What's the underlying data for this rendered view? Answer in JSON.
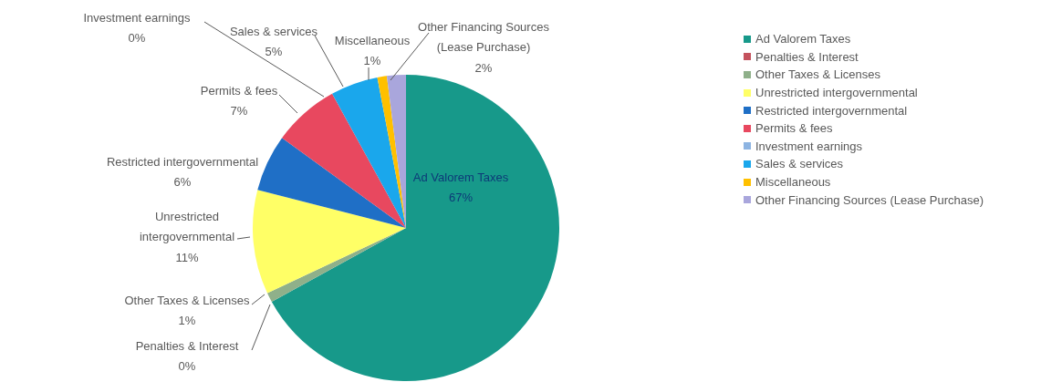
{
  "chart_data": {
    "type": "pie",
    "categories": [
      "Ad Valorem Taxes",
      "Penalties & Interest",
      "Other Taxes & Licenses",
      "Unrestricted intergovernmental",
      "Restricted intergovernmental",
      "Permits & fees",
      "Investment earnings",
      "Sales & services",
      "Miscellaneous",
      "Other Financing Sources (Lease Purchase)"
    ],
    "values": [
      67,
      0,
      1,
      11,
      6,
      7,
      0,
      5,
      1,
      2
    ],
    "value_labels": [
      "67%",
      "0%",
      "1%",
      "11%",
      "6%",
      "7%",
      "0%",
      "5%",
      "1%",
      "2%"
    ],
    "colors": [
      "#17998a",
      "#c4525d",
      "#8fb08a",
      "#ffff66",
      "#1f6fc6",
      "#e8485f",
      "#8db4e2",
      "#1aa7ec",
      "#ffc000",
      "#a9a6dc"
    ],
    "legend": "right"
  }
}
